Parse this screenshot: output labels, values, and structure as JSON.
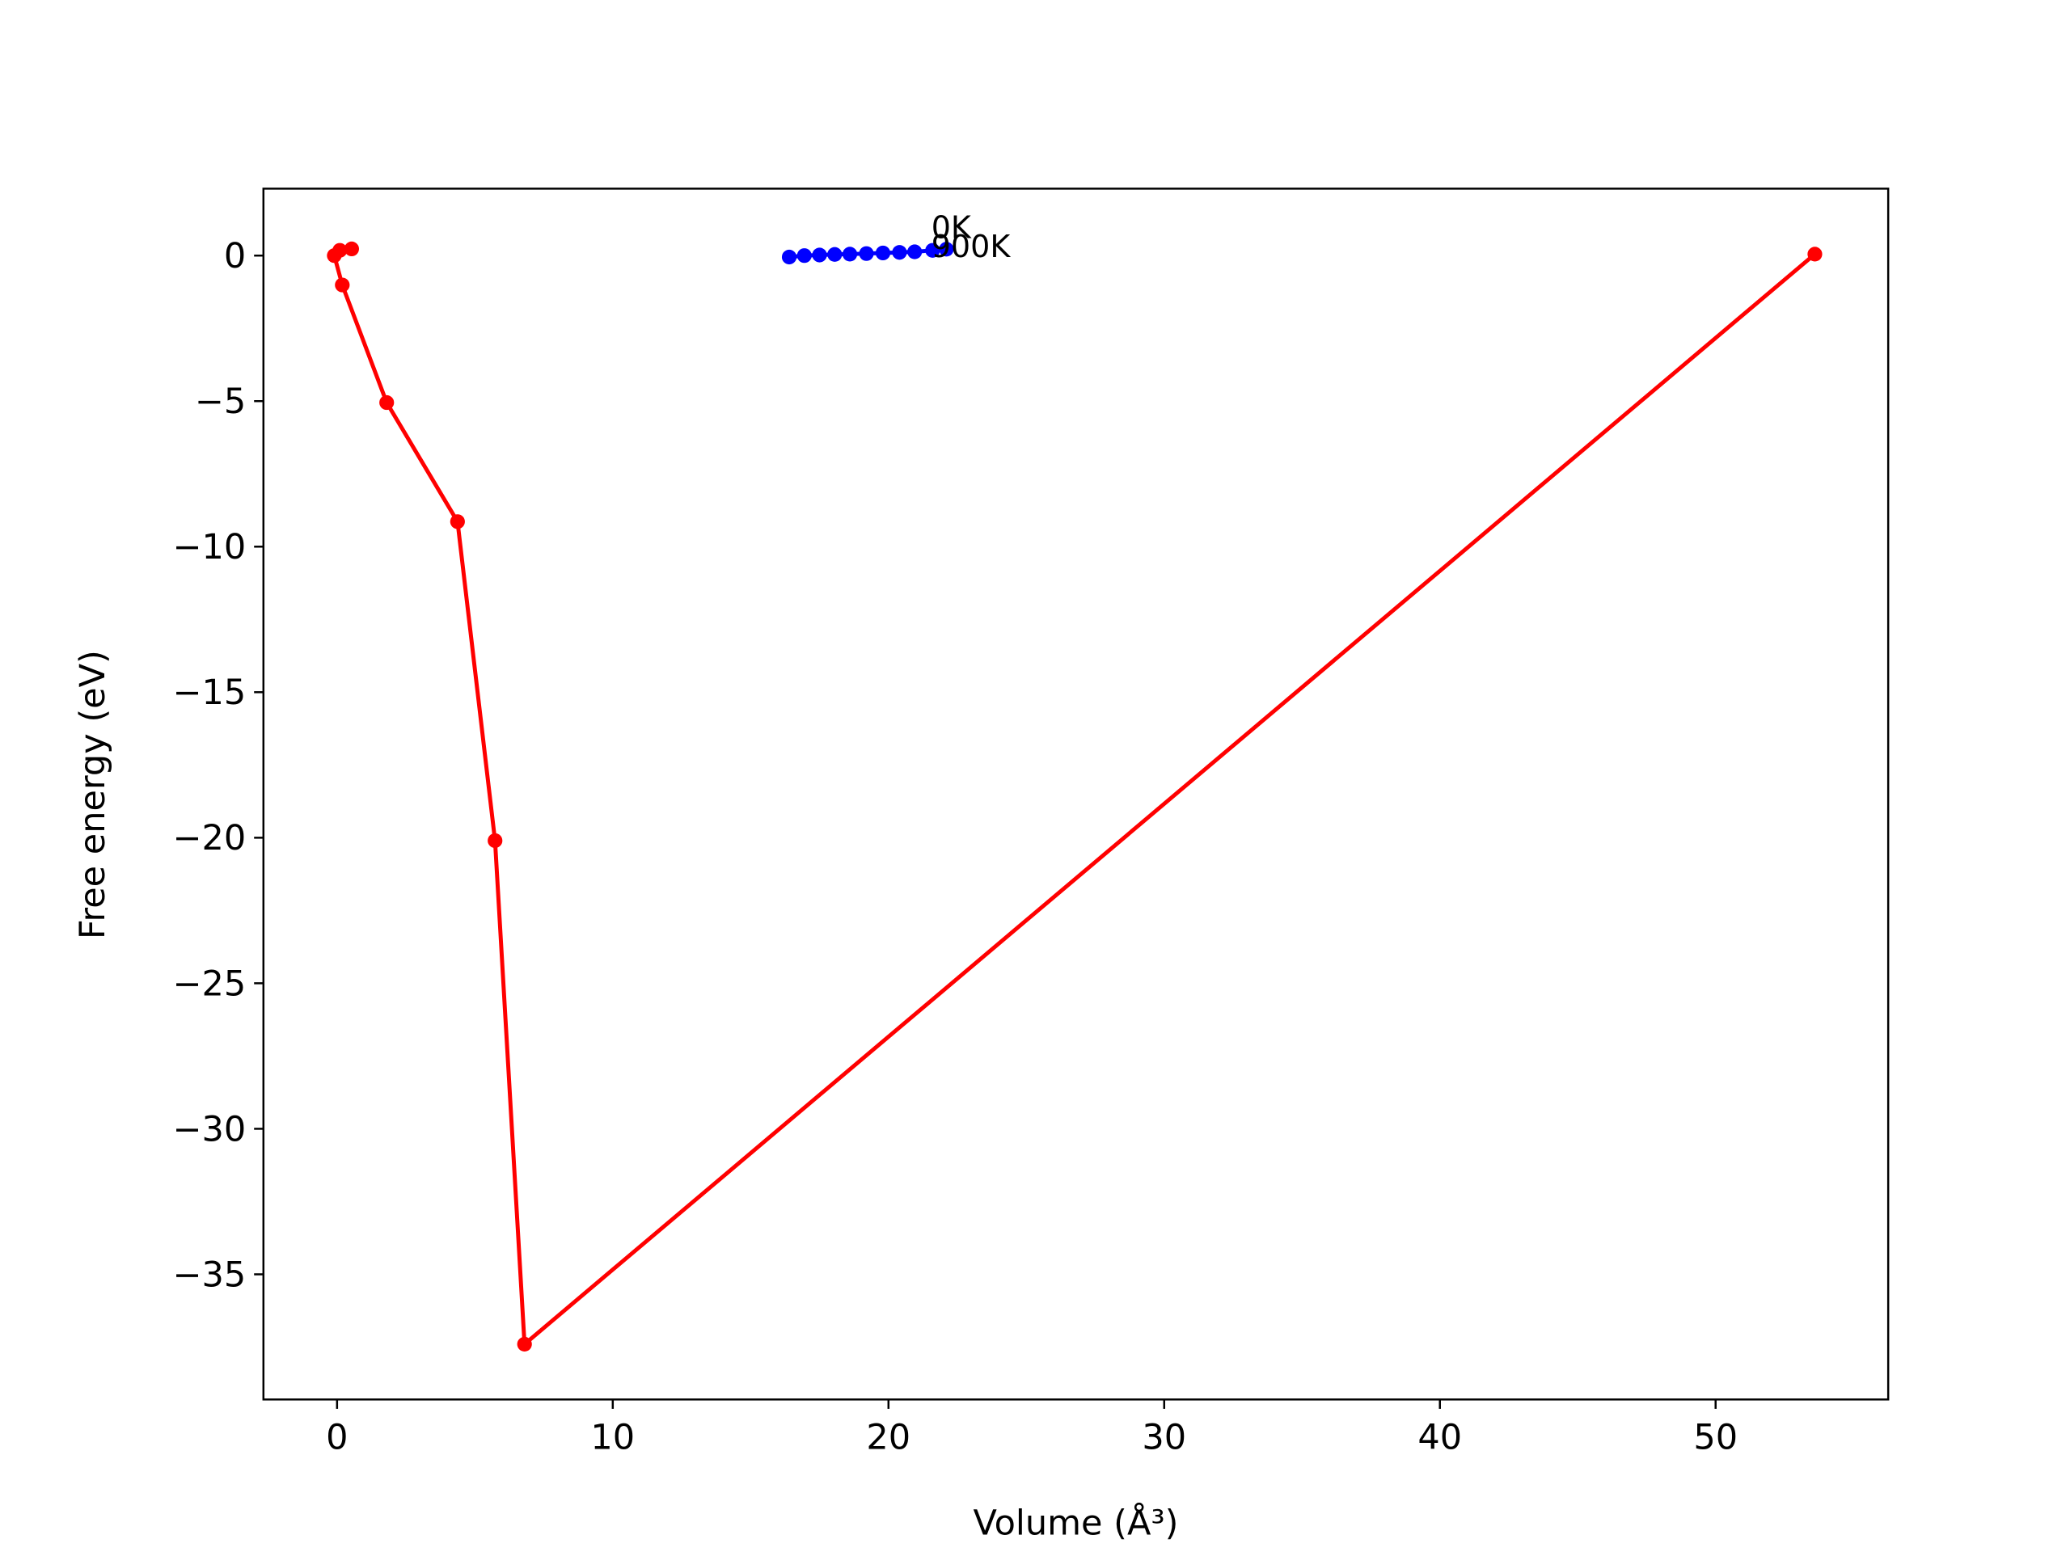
{
  "chart_data": {
    "type": "line",
    "x_label": "Volume (Å³)",
    "y_label": "Free energy (eV)",
    "xlim": [
      -2.67,
      56.26
    ],
    "ylim": [
      -39.3,
      2.3
    ],
    "xticks": [
      0,
      10,
      20,
      30,
      40,
      50
    ],
    "yticks": [
      0,
      {
        "value": -5,
        "label": "−5"
      },
      {
        "value": -10,
        "label": "−10"
      },
      {
        "value": -15,
        "label": "−15"
      },
      {
        "value": -20,
        "label": "−20"
      },
      {
        "value": -25,
        "label": "−25"
      },
      {
        "value": -30,
        "label": "−30"
      },
      {
        "value": -35,
        "label": "−35"
      }
    ],
    "grid": false,
    "annotations": [
      "0K",
      "900K"
    ],
    "series": [
      {
        "color": "#ff0000",
        "x": [
          0.53,
          0.1,
          -0.1,
          0.19,
          1.8,
          4.37,
          5.73,
          6.8,
          53.6
        ],
        "values": [
          0.23,
          0.18,
          0.0,
          -1.01,
          -5.05,
          -9.14,
          -20.1,
          -37.4,
          0.05
        ]
      },
      {
        "color": "#0000ff",
        "x": [
          16.4,
          16.95,
          17.5,
          18.05,
          18.6,
          19.2,
          19.8,
          20.4,
          20.95,
          21.6,
          22.1
        ],
        "values": [
          -0.05,
          0.0,
          0.02,
          0.04,
          0.05,
          0.07,
          0.09,
          0.11,
          0.13,
          0.18,
          0.22
        ]
      }
    ]
  }
}
